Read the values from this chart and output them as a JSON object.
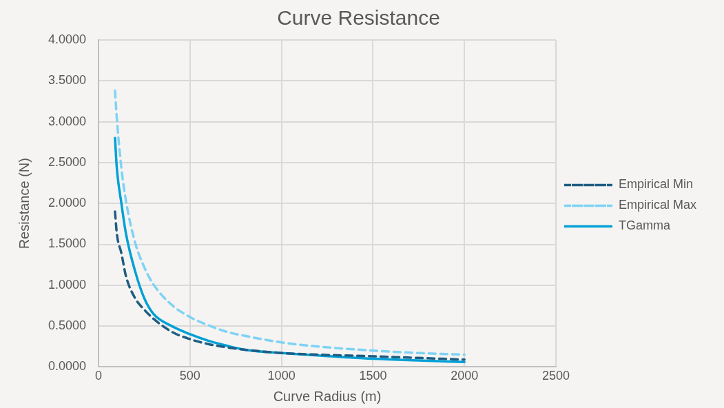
{
  "chart_data": {
    "type": "line",
    "title": "Curve Resistance",
    "xlabel": "Curve Radius (m)",
    "ylabel": "Resistance (N)",
    "x": [
      90,
      100,
      125,
      150,
      200,
      250,
      300,
      400,
      500,
      600,
      700,
      800,
      1000,
      1200,
      1500,
      1750,
      2000
    ],
    "series": [
      {
        "name": "Empirical Min",
        "color": "#1f5d82",
        "line_style": "dashed",
        "values": [
          1.9,
          1.63,
          1.39,
          1.11,
          0.84,
          0.7,
          0.59,
          0.43,
          0.34,
          0.28,
          0.24,
          0.21,
          0.17,
          0.15,
          0.13,
          0.11,
          0.09
        ]
      },
      {
        "name": "Empirical Max",
        "color": "#7fd3f5",
        "line_style": "dashed",
        "values": [
          3.38,
          3.04,
          2.43,
          2.03,
          1.52,
          1.22,
          1.01,
          0.76,
          0.61,
          0.51,
          0.43,
          0.38,
          0.3,
          0.25,
          0.2,
          0.17,
          0.15
        ]
      },
      {
        "name": "TGamma",
        "color": "#00a0d6",
        "line_style": "solid",
        "values": [
          2.8,
          2.43,
          2.0,
          1.63,
          1.17,
          0.84,
          0.65,
          0.5,
          0.4,
          0.32,
          0.26,
          0.21,
          0.17,
          0.14,
          0.1,
          0.08,
          0.06
        ]
      }
    ],
    "xlim": [
      0,
      2500
    ],
    "xticks": [
      0,
      500,
      1000,
      1500,
      2000,
      2500
    ],
    "ylim": [
      0,
      4
    ],
    "yticks": [
      {
        "value": 0,
        "label": "0.0000"
      },
      {
        "value": 0.5,
        "label": "0.5000"
      },
      {
        "value": 1,
        "label": "1.0000"
      },
      {
        "value": 1.5,
        "label": "1.5000"
      },
      {
        "value": 2,
        "label": "2.0000"
      },
      {
        "value": 2.5,
        "label": "2.5000"
      },
      {
        "value": 3,
        "label": "3.0000"
      },
      {
        "value": 3.5,
        "label": "3.5000"
      },
      {
        "value": 4,
        "label": "4.0000"
      }
    ],
    "grid": true,
    "legend": "right",
    "marker": "none"
  }
}
